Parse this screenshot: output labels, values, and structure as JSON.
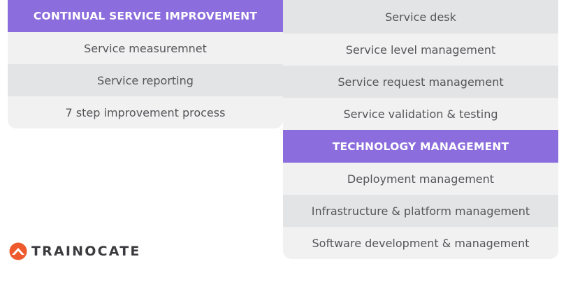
{
  "colors": {
    "header_bg": "#8c6ddd",
    "row_light": "#f1f1f2",
    "row_dark": "#e3e4e6",
    "text": "#555559",
    "logo_accent": "#ee5a2c"
  },
  "left": {
    "header": "CONTINUAL SERVICE IMPROVEMENT",
    "items": [
      "Service measuremnet",
      "Service reporting",
      "7 step improvement process"
    ]
  },
  "right": {
    "top_items": [
      "Service desk",
      "Service level management",
      "Service request management",
      "Service validation & testing"
    ],
    "header": "TECHNOLOGY MANAGEMENT",
    "items": [
      "Deployment management",
      "Infrastructure & platform management",
      "Software development & management"
    ]
  },
  "logo": {
    "text": "TRAINOCATE",
    "icon": "trainocate-mountain-icon"
  }
}
